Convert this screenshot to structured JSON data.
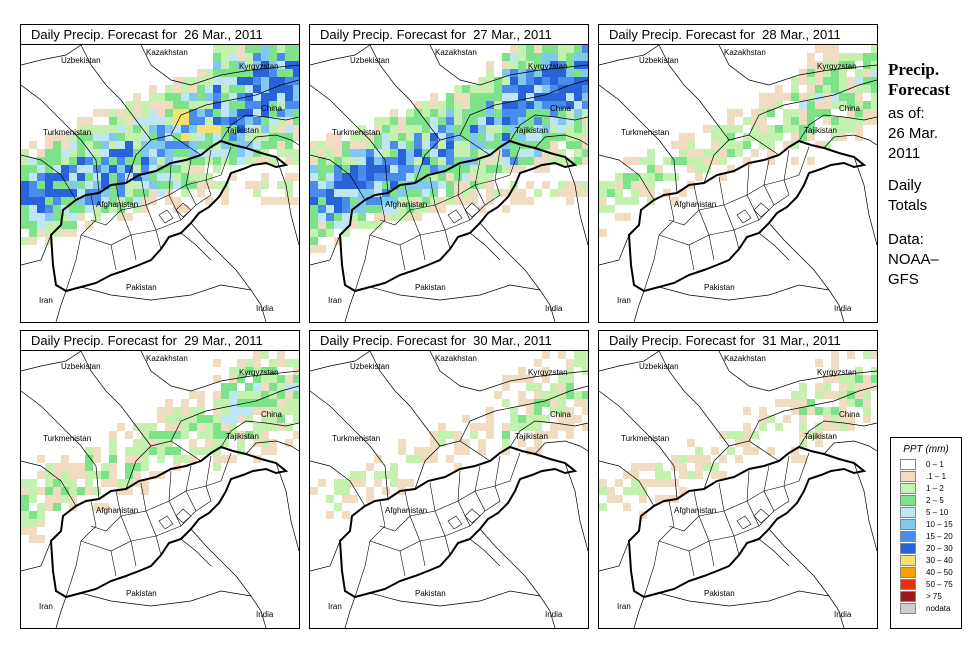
{
  "panels": [
    {
      "title": "Daily Precip. Forecast for  26 Mar., 2011",
      "intensity": 1.0
    },
    {
      "title": "Daily Precip. Forecast for  27 Mar., 2011",
      "intensity": 1.0
    },
    {
      "title": "Daily Precip. Forecast for  28 Mar., 2011",
      "intensity": 0.45
    },
    {
      "title": "Daily Precip. Forecast for  29 Mar., 2011",
      "intensity": 0.5
    },
    {
      "title": "Daily Precip. Forecast for  30 Mar., 2011",
      "intensity": 0.35
    },
    {
      "title": "Daily Precip. Forecast for  31 Mar., 2011",
      "intensity": 0.35
    }
  ],
  "map_labels": {
    "uzbekistan": "Uzbekistan",
    "kazakhstan": "Kazakhstan",
    "kyrgyzstan": "Kyrgyzstan",
    "china": "China",
    "turkmenistan": "Turkmenistan",
    "tajikistan": "Tajikistan",
    "afghanistan": "Afghanistan",
    "iran": "Iran",
    "pakistan": "Pakistan",
    "india": "India"
  },
  "sidebar": {
    "title_line1": "Precip.",
    "title_line2": "Forecast",
    "asof": "as of:",
    "date1": "26 Mar.",
    "date2": "2011",
    "daily": "Daily",
    "totals": "Totals",
    "data": "Data:",
    "source1": "NOAA–",
    "source2": "GFS"
  },
  "legend": {
    "title": "PPT (mm)",
    "items": [
      {
        "label": "0 – 1",
        "color": "#ffffff"
      },
      {
        "label": ".1 – 1",
        "color": "#f0dcc0"
      },
      {
        "label": "1 – 2",
        "color": "#c4f0b0"
      },
      {
        "label": "2 – 5",
        "color": "#7ee28a"
      },
      {
        "label": "5 – 10",
        "color": "#bfe6f5"
      },
      {
        "label": "10 – 15",
        "color": "#80c8f0"
      },
      {
        "label": "15 – 20",
        "color": "#4a8cec"
      },
      {
        "label": "20 – 30",
        "color": "#2864d8"
      },
      {
        "label": "30 – 40",
        "color": "#f8e070"
      },
      {
        "label": "40 – 50",
        "color": "#f8a000"
      },
      {
        "label": "50 – 75",
        "color": "#e83010"
      },
      {
        "label": "> 75",
        "color": "#a01818"
      },
      {
        "label": "nodata",
        "color": "#cccccc"
      }
    ]
  }
}
